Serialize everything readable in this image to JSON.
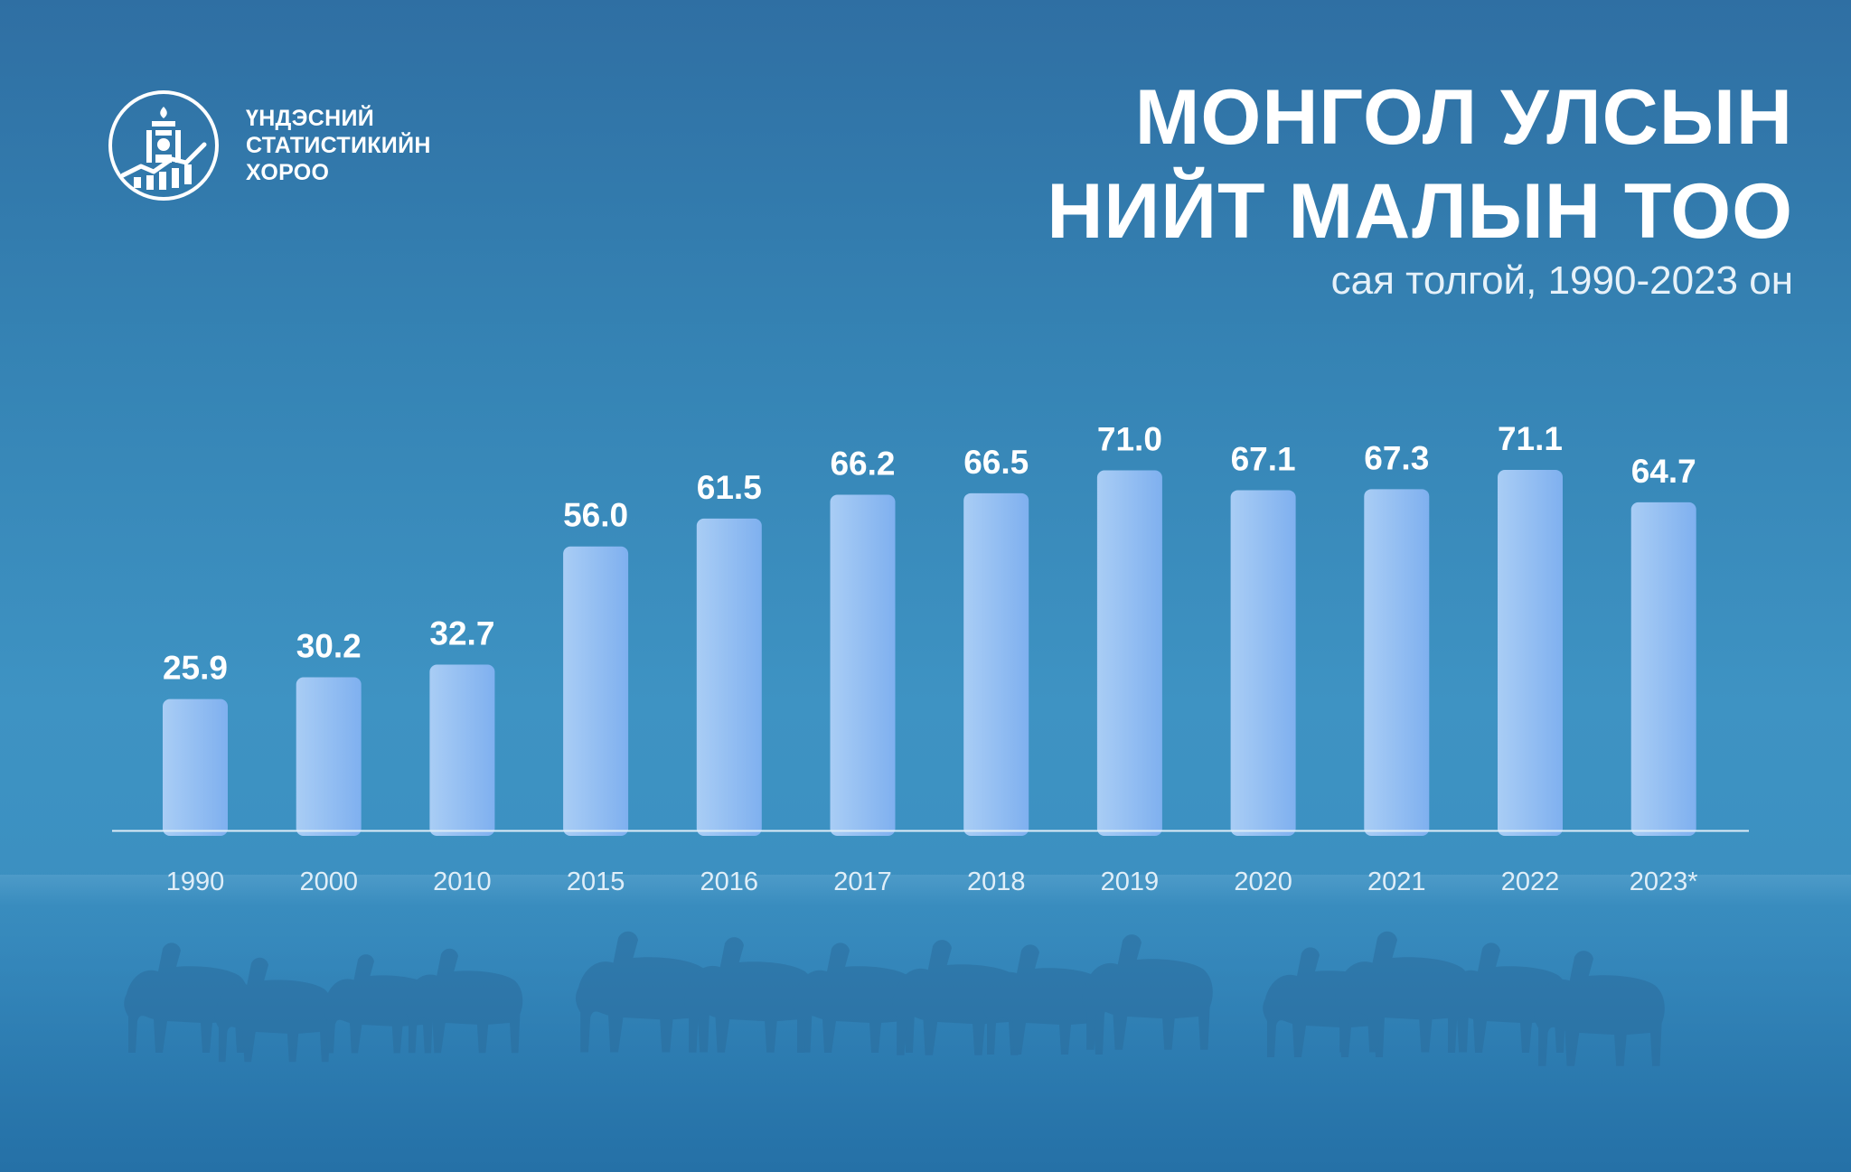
{
  "logo": {
    "lines": [
      "ҮНДЭСНИЙ",
      "СТАТИСТИКИЙН",
      "ХОРОО"
    ],
    "icon": "national-statistics-emblem-icon"
  },
  "header": {
    "title_line1": "МОНГОЛ УЛСЫН",
    "title_line2": "НИЙТ МАЛЫН ТОО",
    "subtitle": "сая толгой, 1990-2023 он"
  },
  "colors": {
    "bar_light": "#a9cdf5",
    "bar_dark": "#7fb0ef",
    "text": "#ffffff",
    "axis": "#dcebf7"
  },
  "chart_data": {
    "type": "bar",
    "categories": [
      "1990",
      "2000",
      "2010",
      "2015",
      "2016",
      "2017",
      "2018",
      "2019",
      "2020",
      "2021",
      "2022",
      "2023*"
    ],
    "values": [
      25.9,
      30.2,
      32.7,
      56.0,
      61.5,
      66.2,
      66.5,
      71.0,
      67.1,
      67.3,
      71.1,
      64.7
    ],
    "value_labels": [
      "25.9",
      "30.2",
      "32.7",
      "56.0",
      "61.5",
      "66.2",
      "66.5",
      "71.0",
      "67.1",
      "67.3",
      "71.1",
      "64.7"
    ],
    "title": "МОНГОЛ УЛСЫН НИЙТ МАЛЫН ТОО",
    "subtitle": "сая толгой, 1990-2023 он",
    "xlabel": "",
    "ylabel": "",
    "ylim": [
      0,
      77
    ],
    "grid": false,
    "legend": "none"
  }
}
